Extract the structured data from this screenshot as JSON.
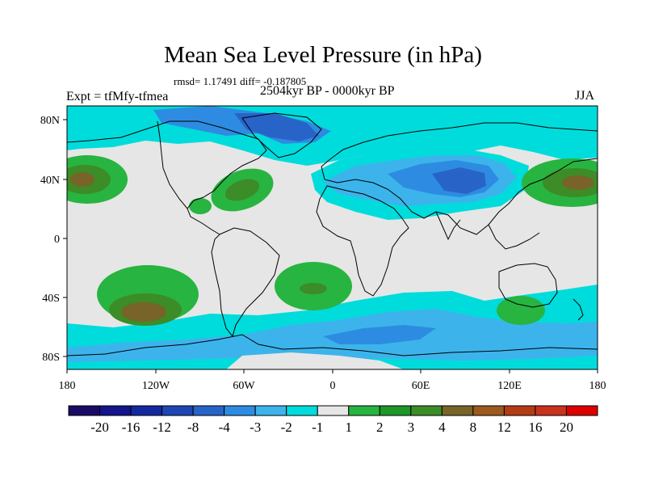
{
  "title": "Mean Sea Level Pressure (in hPa)",
  "stats": "rmsd= 1.17491 diff= -0.187805",
  "expt": "Expt = tfMfy-tfmea",
  "period": "2504kyr BP - 0000kyr BP",
  "season": "JJA",
  "axes": {
    "lat_ticks": [
      "80N",
      "40N",
      "0",
      "40S",
      "80S"
    ],
    "lon_ticks": [
      "180",
      "120W",
      "60W",
      "0",
      "60E",
      "120E",
      "180"
    ]
  },
  "colorbar": {
    "labels": [
      "-20",
      "-16",
      "-12",
      "-8",
      "-4",
      "-3",
      "-2",
      "-1",
      "1",
      "2",
      "3",
      "4",
      "8",
      "12",
      "16",
      "20"
    ],
    "colors": [
      "#1a0a66",
      "#14148c",
      "#1428a0",
      "#1e46b4",
      "#2864c8",
      "#2d8ce1",
      "#3cb4eb",
      "#00dcdc",
      "#e6e6e6",
      "#28b440",
      "#1e9628",
      "#3c8c28",
      "#786428",
      "#9b5a1e",
      "#b43c14",
      "#c8321e",
      "#dc0000"
    ]
  },
  "map_colors": {
    "background": "#e6e6e6",
    "cyan": "#00dcdc",
    "light_blue": "#3cb4eb",
    "mid_blue": "#2d8ce1",
    "deep_blue": "#2864c8",
    "green": "#28b440",
    "dark_green": "#3c8c28",
    "brown": "#786428",
    "coast": "#000000"
  }
}
